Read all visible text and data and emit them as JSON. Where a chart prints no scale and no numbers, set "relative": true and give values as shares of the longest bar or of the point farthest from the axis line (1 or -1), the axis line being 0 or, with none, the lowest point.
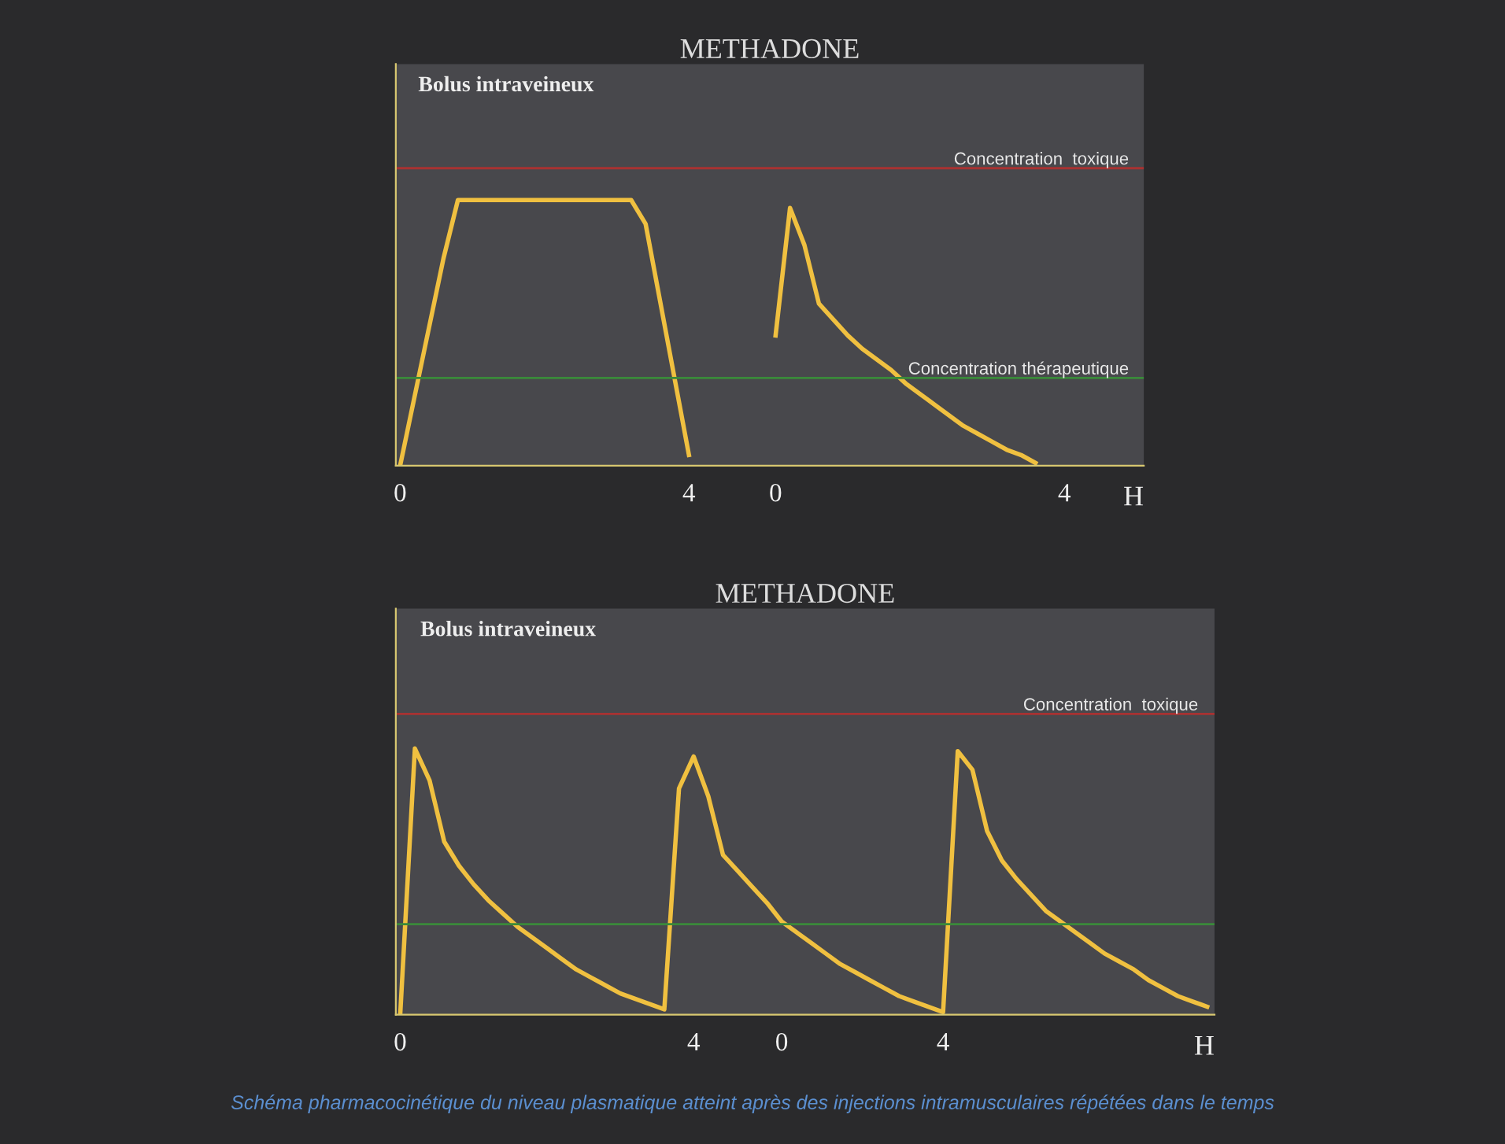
{
  "chart_data": [
    {
      "type": "line",
      "title": "METHADONE",
      "ylabel": "Bolus intraveineux",
      "xlabel": "H",
      "relative": true,
      "categories": [
        "0",
        null,
        null,
        null,
        null,
        null,
        null,
        null,
        null,
        null,
        null,
        null,
        null,
        null,
        null,
        null,
        null,
        null,
        null,
        null,
        "4",
        null,
        null,
        null,
        null,
        null,
        "0",
        null,
        null,
        null,
        null,
        null,
        null,
        null,
        null,
        null,
        null,
        null,
        null,
        null,
        null,
        null,
        null,
        null,
        null,
        null,
        "4",
        null,
        null,
        null,
        null,
        null
      ],
      "series": [
        {
          "color": "#f0c040",
          "values": [
            0,
            0.26,
            0.52,
            0.78,
            1,
            1,
            1,
            1,
            1,
            1,
            1,
            1,
            1,
            1,
            1,
            1,
            1,
            0.91,
            0.62,
            0.33,
            0.04,
            null,
            null,
            null,
            null,
            null,
            null,
            null,
            null,
            null,
            null,
            null,
            null,
            null,
            null,
            null,
            null,
            null,
            null,
            null,
            null,
            null,
            null,
            null,
            null,
            null,
            null,
            null,
            null,
            null,
            null,
            null
          ]
        },
        {
          "color": "#f0c040",
          "values": [
            null,
            null,
            null,
            null,
            null,
            null,
            null,
            null,
            null,
            null,
            null,
            null,
            null,
            null,
            null,
            null,
            null,
            null,
            null,
            null,
            null,
            null,
            null,
            null,
            null,
            null,
            0.49,
            0.97,
            0.83,
            0.61,
            0.55,
            0.49,
            0.44,
            0.4,
            0.36,
            0.31,
            0.27,
            0.23,
            0.19,
            0.15,
            0.12,
            0.09,
            0.06,
            0.04,
            0.01,
            null,
            null,
            null,
            null,
            null,
            null,
            null
          ]
        }
      ],
      "ref_lines": [
        {
          "axis": "y",
          "value": 1.12,
          "label": "Concentration  toxique",
          "color": "#a83232"
        },
        {
          "axis": "y",
          "value": 0.33,
          "label": "Concentration thérapeutique",
          "color": "#3a8a3a"
        }
      ],
      "grid": false,
      "marker": "none",
      "line_style": "solid"
    },
    {
      "type": "line",
      "title": "METHADONE",
      "ylabel": "Bolus intraveineux",
      "xlabel": "H",
      "relative": true,
      "categories": [
        "0",
        null,
        null,
        null,
        null,
        null,
        null,
        null,
        null,
        null,
        null,
        null,
        null,
        null,
        null,
        null,
        null,
        null,
        null,
        null,
        "4",
        null,
        null,
        null,
        null,
        null,
        "0",
        null,
        null,
        null,
        null,
        null,
        null,
        null,
        null,
        null,
        null,
        "4",
        null,
        null,
        null,
        null,
        null,
        null,
        null,
        null,
        null,
        null,
        null,
        null,
        null,
        null,
        null,
        null,
        null,
        null
      ],
      "series": [
        {
          "color": "#f0c040",
          "values": [
            0,
            1,
            0.88,
            0.65,
            0.56,
            0.49,
            0.43,
            0.38,
            0.33,
            0.29,
            0.25,
            0.21,
            0.17,
            0.14,
            0.11,
            0.08,
            0.06,
            0.04,
            0.02,
            0.85,
            0.97,
            0.82,
            0.6,
            0.54,
            0.48,
            0.42,
            0.35,
            0.31,
            0.27,
            0.23,
            0.19,
            0.16,
            0.13,
            0.1,
            0.07,
            0.05,
            0.03,
            0.01,
            0.99,
            0.92,
            0.69,
            0.58,
            0.51,
            0.45,
            0.39,
            0.35,
            0.31,
            0.27,
            0.23,
            0.2,
            0.17,
            0.13,
            0.1,
            0.07,
            0.05,
            0.03
          ]
        }
      ],
      "ref_lines": [
        {
          "axis": "y",
          "value": 1.13,
          "label": "Concentration  toxique",
          "color": "#a83232"
        },
        {
          "axis": "y",
          "value": 0.34,
          "color": "#3a8a3a"
        }
      ],
      "annotations": [
        "Schéma pharmacocinétique du niveau plasmatique atteint après des injections intramusculaires répétées dans le temps"
      ],
      "grid": false,
      "marker": "none",
      "line_style": "solid"
    }
  ]
}
